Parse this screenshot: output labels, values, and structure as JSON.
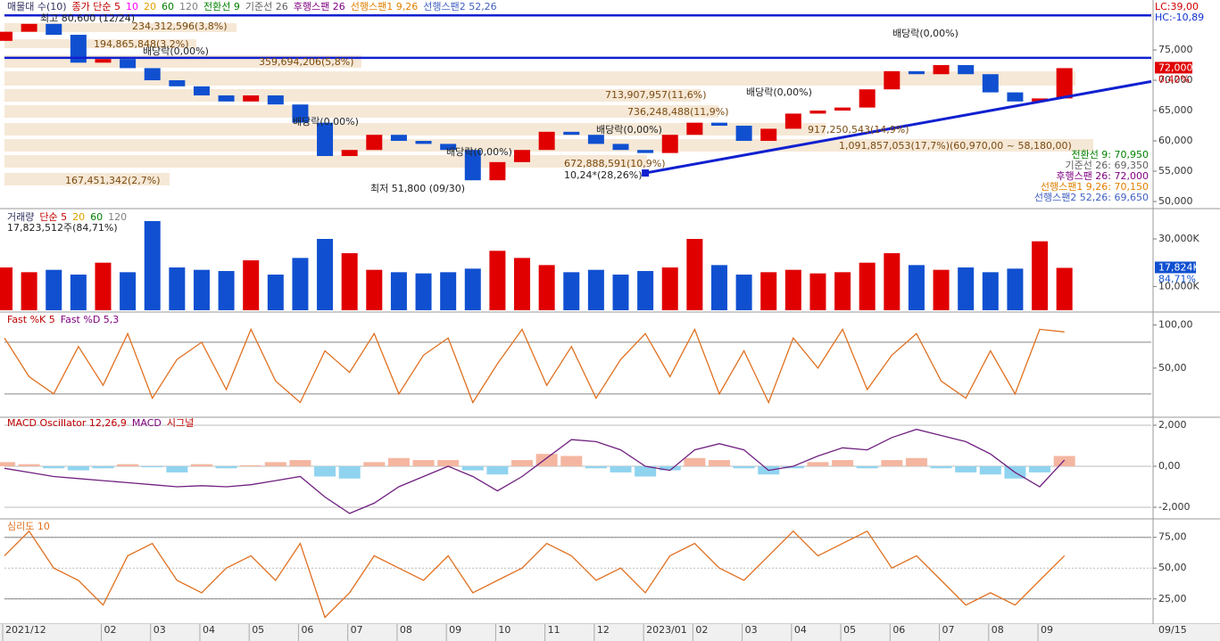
{
  "chart_data": [
    {
      "type": "candlestick",
      "header": [
        {
          "text": "매물대 수(10)",
          "color": "#303060"
        },
        {
          "text": "종가 단순 5",
          "color": "#c00000"
        },
        {
          "text": "10",
          "color": "#ff00ff"
        },
        {
          "text": "20",
          "color": "#e0a000"
        },
        {
          "text": "60",
          "color": "#008000"
        },
        {
          "text": "120",
          "color": "#808080"
        },
        {
          "text": "전환선 9",
          "color": "#008000"
        },
        {
          "text": "기준선 26",
          "color": "#606060"
        },
        {
          "text": "후행스팬 26",
          "color": "#800080"
        },
        {
          "text": "선행스팬1 9,26",
          "color": "#e08000"
        },
        {
          "text": "선행스팬2 52,26",
          "color": "#4060c0"
        }
      ],
      "lc_label": "LC:39,00",
      "hc_label": "HC:-10,89",
      "last_price_label": "72,000",
      "change_label": "0,42%",
      "categories": [
        "2021/12",
        null,
        null,
        null,
        "02",
        null,
        "03",
        null,
        "04",
        null,
        "05",
        null,
        "06",
        null,
        "07",
        null,
        "08",
        null,
        "09",
        null,
        "10",
        null,
        "11",
        null,
        "12",
        null,
        "2023/01",
        null,
        "02",
        null,
        "03",
        null,
        "04",
        null,
        "05",
        null,
        "06",
        null,
        "07",
        null,
        "08",
        null,
        "09",
        null
      ],
      "x_end_label": "09/15",
      "open": [
        76500,
        78000,
        79300,
        77500,
        72900,
        73500,
        72000,
        70000,
        69000,
        67500,
        66500,
        67500,
        66000,
        63000,
        57500,
        58500,
        61000,
        60000,
        59500,
        58500,
        53500,
        56500,
        58500,
        61500,
        61000,
        59500,
        58500,
        58000,
        61000,
        63000,
        62500,
        60000,
        62000,
        64500,
        65000,
        65500,
        68500,
        71500,
        71000,
        72500,
        71000,
        68000,
        66500,
        67000
      ],
      "close": [
        78000,
        79300,
        77500,
        72900,
        73500,
        72000,
        70000,
        69000,
        67500,
        66500,
        67500,
        66000,
        63000,
        57500,
        58500,
        61000,
        60000,
        59500,
        58500,
        53500,
        56500,
        58500,
        61500,
        61000,
        59500,
        58500,
        58000,
        61000,
        63000,
        62500,
        60000,
        62000,
        64500,
        65000,
        65500,
        68500,
        71500,
        71000,
        72500,
        71000,
        68000,
        66500,
        67000,
        72000
      ],
      "up_color": "#e00000",
      "down_color": "#1050d0",
      "ylim": [
        49120,
        81180
      ],
      "yticks": [
        {
          "value": 75000,
          "label": "75,000"
        },
        {
          "value": 70000,
          "label": "70,000"
        },
        {
          "value": 65000,
          "label": "65,000"
        },
        {
          "value": 60000,
          "label": "60,000"
        },
        {
          "value": 55000,
          "label": "55,000"
        },
        {
          "value": 50000,
          "label": "50,000"
        }
      ],
      "hlines": [
        80700,
        73700
      ],
      "line_color": "#1020d0",
      "trendline": {
        "start": 54700,
        "end": 69800
      },
      "annotations": [
        "최고 80,600 (12/24)",
        "234,312,596(3,8%)",
        "194,865,848(3,2%)",
        "배당락(0,00%)",
        "359,694,206(5,8%)",
        "배당락(0,00%)",
        "713,907,957(11,6%)",
        "배당락(0,00%)",
        "배당락(0,00%)",
        "736,248,488(11,9%)",
        "배당락(0,00%)",
        "917,250,543(14,9%)",
        "1,091,857,053(17,7%)(60,970,00 ~ 58,180,00)",
        "배당락(0,00%)",
        "672,888,591(10,9%)",
        "10,24*(28,26%)",
        "167,451,342(2,7%)",
        "최저 51,800 (09/30)"
      ],
      "ichimoku_labels": [
        {
          "text": "전환선 9: 70,950",
          "color": "#008000"
        },
        {
          "text": "기준선 26: 69,350",
          "color": "#606060"
        },
        {
          "text": "후행스팬 26: 72,000",
          "color": "#800080"
        },
        {
          "text": "선행스팬1 9,26: 70,150",
          "color": "#e08000"
        },
        {
          "text": "선행스팬2 52,26: 69,650",
          "color": "#4060c0"
        }
      ]
    },
    {
      "type": "bar",
      "header": [
        {
          "text": "거래량",
          "color": "#303060"
        },
        {
          "text": "단순 5",
          "color": "#c00000"
        },
        {
          "text": "20",
          "color": "#e0a000"
        },
        {
          "text": "60",
          "color": "#008000"
        },
        {
          "text": "120",
          "color": "#808080"
        }
      ],
      "subtitle": "17,823,512주(84,71%)",
      "values": [
        18000,
        16000,
        17000,
        15000,
        20000,
        16000,
        37500,
        18000,
        17000,
        16500,
        21000,
        15000,
        22000,
        30000,
        24000,
        17000,
        16000,
        15500,
        16000,
        17500,
        25000,
        22000,
        19000,
        16000,
        17000,
        15000,
        16500,
        18000,
        30000,
        19000,
        15000,
        16000,
        17000,
        15500,
        16000,
        20000,
        24000,
        19000,
        17000,
        18000,
        16000,
        17500,
        29000,
        17824
      ],
      "ylim": [
        0,
        42000
      ],
      "yticks": [
        {
          "value": 30000,
          "label": "30,000K"
        },
        {
          "value": 10000,
          "label": "10,000K"
        }
      ],
      "last_label": "17,824K",
      "ratio_label": "84,71%"
    },
    {
      "type": "line",
      "header": [
        {
          "text": "Fast %K 5",
          "color": "#c00000"
        },
        {
          "text": "Fast %D 5,3",
          "color": "#800080"
        }
      ],
      "values": [
        85,
        40,
        20,
        75,
        30,
        90,
        15,
        60,
        80,
        25,
        95,
        35,
        10,
        70,
        45,
        90,
        20,
        65,
        85,
        10,
        55,
        95,
        30,
        75,
        15,
        60,
        90,
        40,
        95,
        20,
        70,
        10,
        85,
        50,
        95,
        25,
        65,
        90,
        35,
        15,
        70,
        20,
        95,
        92
      ],
      "color": "#e07020",
      "ylim": [
        -5,
        113
      ],
      "yticks": [
        {
          "value": 50,
          "label": "50,00"
        },
        {
          "value": 100,
          "label": "100,00"
        }
      ],
      "ref_lines": [
        80,
        20
      ]
    },
    {
      "type": "combo",
      "header": [
        {
          "text": "MACD Oscillator 12,26,9",
          "color": "#c00000"
        },
        {
          "text": "MACD",
          "color": "#800080"
        },
        {
          "text": "시그널",
          "color": "#c00000"
        }
      ],
      "oscillator": [
        200,
        100,
        -100,
        -200,
        -100,
        100,
        -50,
        -300,
        100,
        -100,
        50,
        200,
        300,
        -500,
        -600,
        200,
        400,
        300,
        300,
        -200,
        -400,
        300,
        600,
        500,
        -100,
        -300,
        -500,
        -200,
        400,
        300,
        -100,
        -400,
        -100,
        200,
        300,
        -100,
        300,
        400,
        -100,
        -300,
        -400,
        -600,
        -300,
        500
      ],
      "macd": [
        -100,
        -300,
        -500,
        -600,
        -700,
        -800,
        -900,
        -1000,
        -950,
        -1000,
        -900,
        -700,
        -500,
        -1500,
        -2300,
        -1800,
        -1000,
        -500,
        0,
        -500,
        -1200,
        -500,
        400,
        1300,
        1200,
        800,
        0,
        -200,
        800,
        1100,
        800,
        -200,
        0,
        500,
        900,
        800,
        1400,
        1800,
        1500,
        1200,
        600,
        -300,
        -1000,
        300
      ],
      "pos_color": "#f4b6a0",
      "neg_color": "#8fd3ef",
      "line_color": "#702080",
      "ylim": [
        -2480,
        2390
      ],
      "yticks": [
        {
          "value": 2000,
          "label": "2,000"
        },
        {
          "value": 0,
          "label": "0,00"
        },
        {
          "value": -2000,
          "label": "-2,000"
        }
      ]
    },
    {
      "type": "line",
      "header": [
        {
          "text": "심리도 10",
          "color": "#e07020"
        }
      ],
      "values": [
        60,
        80,
        50,
        40,
        20,
        60,
        70,
        40,
        30,
        50,
        60,
        40,
        70,
        10,
        30,
        60,
        50,
        40,
        60,
        30,
        40,
        50,
        70,
        60,
        40,
        50,
        30,
        60,
        70,
        50,
        40,
        60,
        80,
        60,
        70,
        80,
        50,
        60,
        40,
        20,
        30,
        20,
        40,
        60
      ],
      "color": "#e07020",
      "ylim": [
        6,
        90
      ],
      "yticks": [
        {
          "value": 25,
          "label": "25,00"
        },
        {
          "value": 50,
          "label": "50,00"
        },
        {
          "value": 75,
          "label": "75,00"
        }
      ],
      "ref_lines": [
        75,
        25
      ]
    }
  ]
}
